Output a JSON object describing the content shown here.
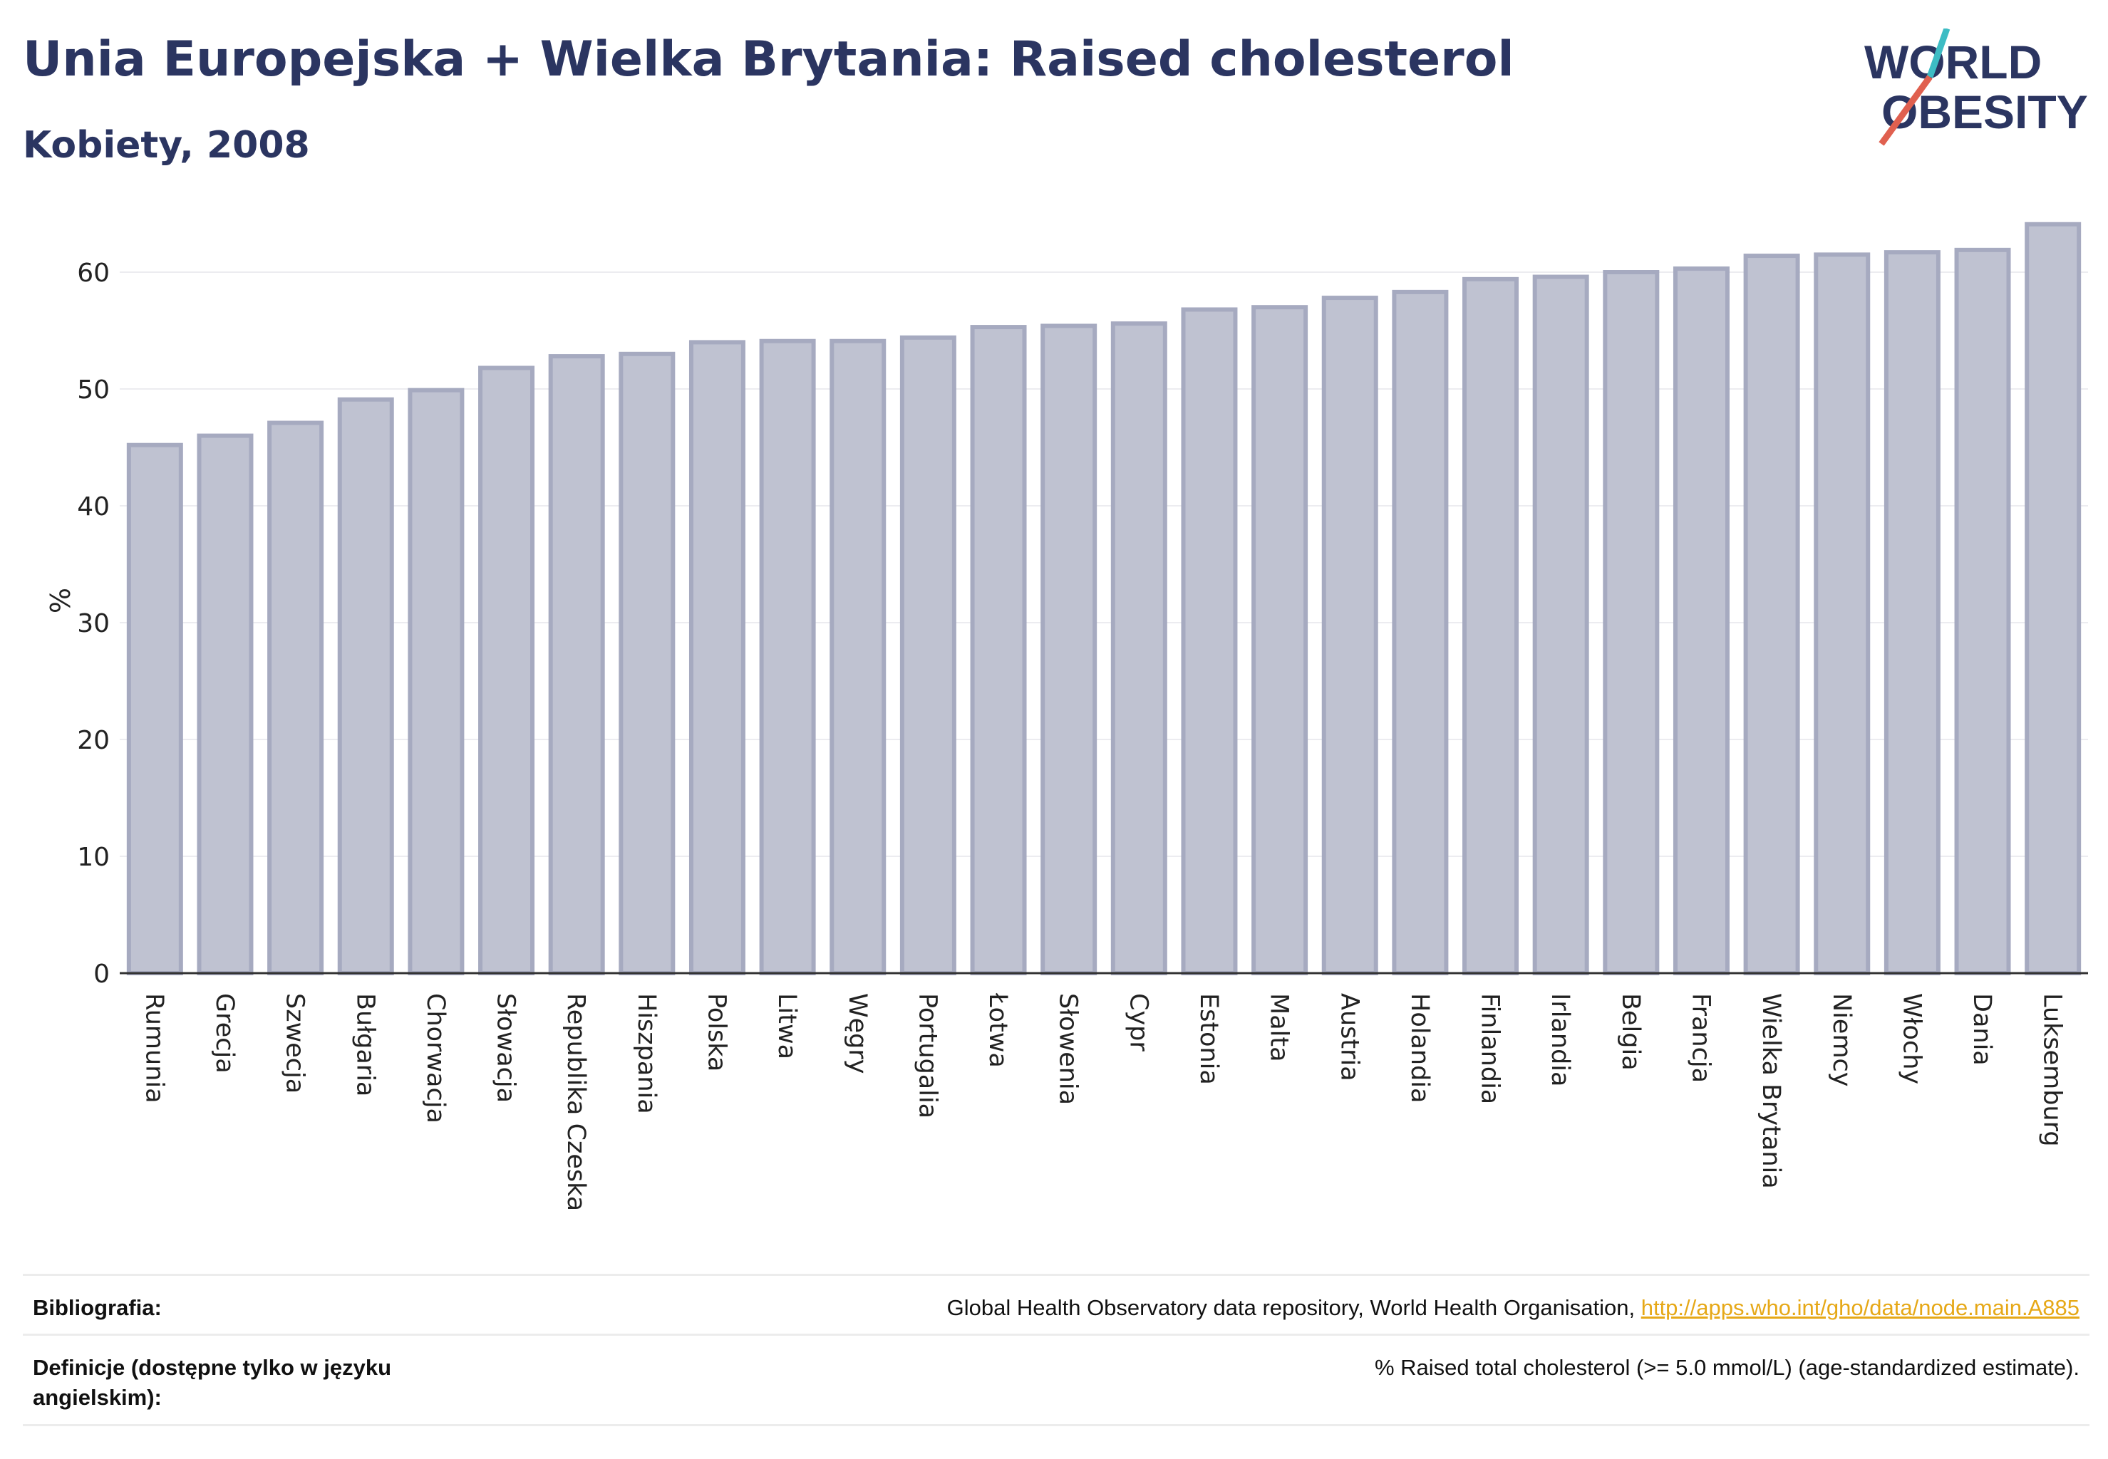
{
  "header": {
    "title": "Unia Europejska + Wielka Brytania: Raised cholesterol",
    "subtitle": "Kobiety, 2008"
  },
  "logo": {
    "line1": "WORLD",
    "line2": "OBESITY",
    "text_color": "#2b3561",
    "slash_top_color": "#3dbcc4",
    "slash_bottom_color": "#e0604f"
  },
  "chart_data": {
    "type": "bar",
    "title": "Unia Europejska + Wielka Brytania: Raised cholesterol",
    "subtitle": "Kobiety, 2008",
    "ylabel": "%",
    "xlabel": "",
    "ylim": [
      0,
      65
    ],
    "yticks": [
      0,
      10,
      20,
      30,
      40,
      50,
      60
    ],
    "grid": true,
    "bar_fill": "#bfc2d1",
    "bar_stroke": "#a6aac0",
    "categories": [
      "Rumunia",
      "Grecja",
      "Szwecja",
      "Bułgaria",
      "Chorwacja",
      "Słowacja",
      "Republika Czeska",
      "Hiszpania",
      "Polska",
      "Litwa",
      "Węgry",
      "Portugalia",
      "Łotwa",
      "Słowenia",
      "Cypr",
      "Estonia",
      "Malta",
      "Austria",
      "Holandia",
      "Finlandia",
      "Irlandia",
      "Belgia",
      "Francja",
      "Wielka Brytania",
      "Niemcy",
      "Włochy",
      "Dania",
      "Luksemburg"
    ],
    "values": [
      45.2,
      46.0,
      47.1,
      49.1,
      49.9,
      51.8,
      52.8,
      53.0,
      54.0,
      54.1,
      54.1,
      54.4,
      55.3,
      55.4,
      55.6,
      56.8,
      57.0,
      57.8,
      58.3,
      59.4,
      59.6,
      60.0,
      60.3,
      61.4,
      61.5,
      61.7,
      61.9,
      64.1
    ]
  },
  "footer": {
    "bibliography_label": "Bibliografia:",
    "bibliography_text": "Global Health Observatory data repository, World Health Organisation, ",
    "bibliography_link": "http://apps.who.int/gho/data/node.main.A885",
    "definitions_label": "Definicje (dostępne tylko w języku angielskim):",
    "definitions_text": "% Raised total cholesterol (>= 5.0 mmol/L) (age-standardized estimate)."
  }
}
